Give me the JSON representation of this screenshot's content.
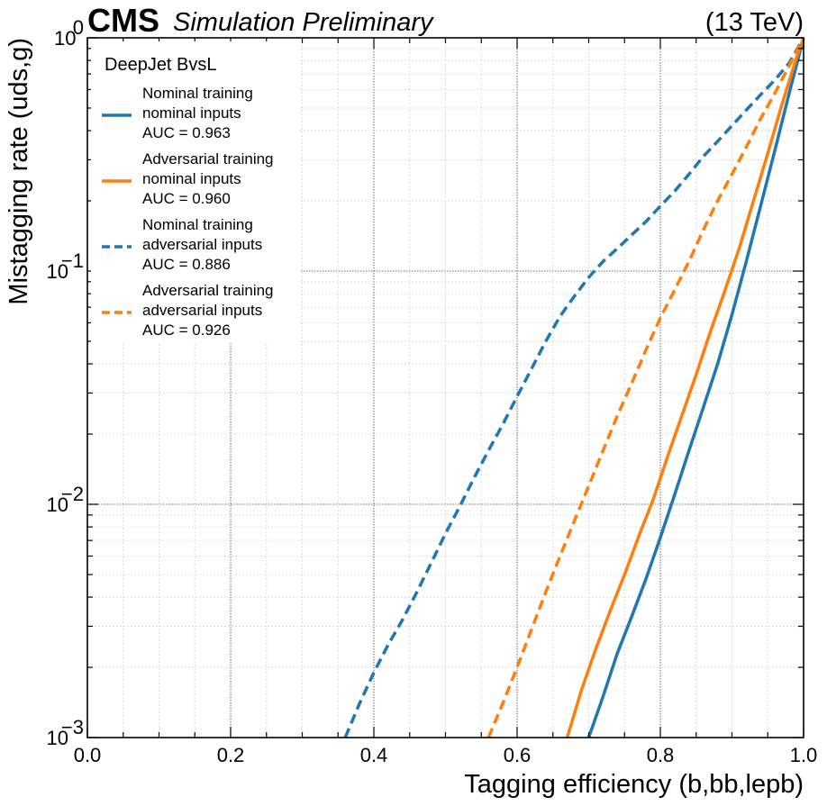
{
  "header": {
    "cms_label": "CMS",
    "status_label": "Simulation Preliminary",
    "energy_label": "(13 TeV)"
  },
  "chart_data": {
    "type": "line",
    "xlabel": "Tagging efficiency (b,bb,lepb)",
    "ylabel": "Mistagging rate (uds,g)",
    "xlim": [
      0.0,
      1.0
    ],
    "ylim": [
      0.001,
      1.0
    ],
    "yscale": "log",
    "grid": true,
    "x_ticks": [
      "0.0",
      "0.2",
      "0.4",
      "0.6",
      "0.8",
      "1.0"
    ],
    "y_ticks": [
      {
        "base": "10",
        "exp": "−3"
      },
      {
        "base": "10",
        "exp": "−2"
      },
      {
        "base": "10",
        "exp": "−1"
      },
      {
        "base": "10",
        "exp": "0"
      }
    ],
    "legend": {
      "title": "DeepJet BvsL",
      "placement": "upper-left"
    },
    "series": [
      {
        "name": "Nominal training nominal inputs AUC = 0.963",
        "lines": [
          "Nominal training",
          "nominal inputs",
          "AUC = 0.963"
        ],
        "color": "#1f77b4",
        "style": "solid",
        "x": [
          0.7,
          0.72,
          0.74,
          0.76,
          0.78,
          0.8,
          0.82,
          0.84,
          0.86,
          0.88,
          0.9,
          0.92,
          0.94,
          0.96,
          0.98,
          1.0
        ],
        "y": [
          0.001,
          0.0015,
          0.0023,
          0.0033,
          0.0048,
          0.0072,
          0.011,
          0.017,
          0.026,
          0.04,
          0.065,
          0.11,
          0.19,
          0.33,
          0.58,
          1.0
        ]
      },
      {
        "name": "Adversarial training nominal inputs AUC = 0.960",
        "lines": [
          "Adversarial training",
          "nominal inputs",
          "AUC = 0.960"
        ],
        "color": "#ff7f0e",
        "style": "solid",
        "x": [
          0.67,
          0.69,
          0.71,
          0.73,
          0.75,
          0.77,
          0.79,
          0.81,
          0.83,
          0.85,
          0.87,
          0.89,
          0.91,
          0.93,
          0.95,
          0.97,
          0.99,
          1.0
        ],
        "y": [
          0.001,
          0.0016,
          0.0024,
          0.0035,
          0.005,
          0.0073,
          0.0105,
          0.016,
          0.024,
          0.036,
          0.055,
          0.082,
          0.125,
          0.2,
          0.32,
          0.52,
          0.82,
          1.0
        ]
      },
      {
        "name": "Nominal training adversarial inputs AUC = 0.886",
        "lines": [
          "Nominal training",
          "adversarial inputs",
          "AUC = 0.886"
        ],
        "color": "#1f77b4",
        "style": "dashed",
        "x": [
          0.36,
          0.38,
          0.4,
          0.42,
          0.44,
          0.46,
          0.48,
          0.5,
          0.52,
          0.54,
          0.56,
          0.58,
          0.6,
          0.62,
          0.64,
          0.66,
          0.68,
          0.7,
          0.72,
          0.74,
          0.76,
          0.78,
          0.8,
          0.82,
          0.84,
          0.86,
          0.88,
          0.9,
          0.92,
          0.94,
          0.96,
          0.98,
          1.0
        ],
        "y": [
          0.001,
          0.0014,
          0.0019,
          0.0025,
          0.0032,
          0.0042,
          0.0056,
          0.0075,
          0.0098,
          0.013,
          0.017,
          0.022,
          0.029,
          0.038,
          0.05,
          0.064,
          0.078,
          0.094,
          0.11,
          0.125,
          0.143,
          0.163,
          0.19,
          0.22,
          0.26,
          0.31,
          0.36,
          0.42,
          0.49,
          0.57,
          0.66,
          0.78,
          1.0
        ]
      },
      {
        "name": "Adversarial training adversarial inputs AUC = 0.926",
        "lines": [
          "Adversarial training",
          "adversarial inputs",
          "AUC = 0.926"
        ],
        "color": "#ff7f0e",
        "style": "dashed",
        "x": [
          0.56,
          0.58,
          0.6,
          0.62,
          0.64,
          0.66,
          0.68,
          0.7,
          0.72,
          0.74,
          0.76,
          0.78,
          0.8,
          0.82,
          0.84,
          0.86,
          0.88,
          0.9,
          0.92,
          0.94,
          0.96,
          0.98,
          1.0
        ],
        "y": [
          0.001,
          0.0014,
          0.002,
          0.0029,
          0.0042,
          0.006,
          0.0085,
          0.012,
          0.017,
          0.024,
          0.033,
          0.046,
          0.063,
          0.083,
          0.11,
          0.15,
          0.2,
          0.26,
          0.34,
          0.45,
          0.58,
          0.76,
          1.0
        ]
      }
    ]
  }
}
